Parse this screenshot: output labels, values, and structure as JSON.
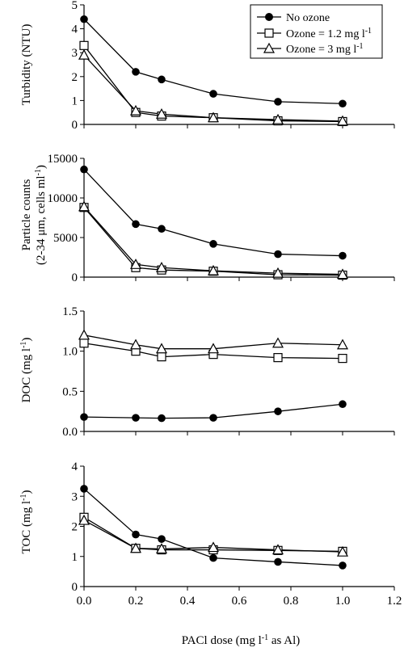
{
  "chart_data": [
    {
      "type": "line",
      "ylabel": "Turbidity (NTU)",
      "ylim": [
        0,
        5
      ],
      "yticks": [
        "0",
        "1",
        "2",
        "3",
        "4",
        "5"
      ],
      "x": [
        0.0,
        0.2,
        0.3,
        0.5,
        0.75,
        1.0
      ],
      "series": [
        {
          "name": "No ozone",
          "marker": "circle",
          "values": [
            4.4,
            2.2,
            1.88,
            1.28,
            0.95,
            0.87
          ]
        },
        {
          "name": "Ozone = 1.2 mg l-1",
          "marker": "square",
          "values": [
            3.3,
            0.5,
            0.35,
            0.28,
            0.15,
            0.12
          ]
        },
        {
          "name": "Ozone = 3 mg l-1",
          "marker": "triangle",
          "values": [
            2.9,
            0.57,
            0.43,
            0.28,
            0.2,
            0.14
          ]
        }
      ],
      "legend": "top-right"
    },
    {
      "type": "line",
      "ylabel": "Particle counts (2-34 μm, cells ml-1)",
      "ylim": [
        0,
        15000
      ],
      "yticks": [
        "0",
        "5000",
        "10000",
        "15000"
      ],
      "x": [
        0.0,
        0.2,
        0.3,
        0.5,
        0.75,
        1.0
      ],
      "series": [
        {
          "name": "No ozone",
          "marker": "circle",
          "values": [
            13600,
            6700,
            6100,
            4200,
            2900,
            2700
          ]
        },
        {
          "name": "Ozone = 1.2 mg l-1",
          "marker": "square",
          "values": [
            8800,
            1200,
            900,
            750,
            300,
            250
          ]
        },
        {
          "name": "Ozone = 3 mg l-1",
          "marker": "triangle",
          "values": [
            8900,
            1600,
            1200,
            800,
            500,
            350
          ]
        }
      ]
    },
    {
      "type": "line",
      "ylabel": "DOC (mg l-1)",
      "ylim": [
        0,
        1.5
      ],
      "yticks": [
        "0.0",
        "0.5",
        "1.0",
        "1.5"
      ],
      "x": [
        0.0,
        0.2,
        0.3,
        0.5,
        0.75,
        1.0
      ],
      "series": [
        {
          "name": "No ozone",
          "marker": "circle",
          "values": [
            0.18,
            0.17,
            0.165,
            0.17,
            0.25,
            0.34
          ]
        },
        {
          "name": "Ozone = 1.2 mg l-1",
          "marker": "square",
          "values": [
            1.1,
            1.0,
            0.93,
            0.96,
            0.92,
            0.91
          ]
        },
        {
          "name": "Ozone = 3 mg l-1",
          "marker": "triangle",
          "values": [
            1.2,
            1.08,
            1.03,
            1.03,
            1.1,
            1.08
          ]
        }
      ]
    },
    {
      "type": "line",
      "ylabel": "TOC (mg l-1)",
      "ylim": [
        0,
        4
      ],
      "yticks": [
        "0",
        "1",
        "2",
        "3",
        "4"
      ],
      "xlabel": "PACl dose (mg l-1 as Al)",
      "xlim": [
        0,
        1.2
      ],
      "xticks": [
        "0.0",
        "0.2",
        "0.4",
        "0.6",
        "0.8",
        "1.0",
        "1.2"
      ],
      "x": [
        0.0,
        0.2,
        0.3,
        0.5,
        0.75,
        1.0
      ],
      "series": [
        {
          "name": "No ozone",
          "marker": "circle",
          "values": [
            3.25,
            1.73,
            1.58,
            0.95,
            0.82,
            0.7
          ]
        },
        {
          "name": "Ozone = 1.2 mg l-1",
          "marker": "square",
          "values": [
            2.3,
            1.27,
            1.22,
            1.22,
            1.2,
            1.17
          ]
        },
        {
          "name": "Ozone = 3 mg l-1",
          "marker": "triangle",
          "values": [
            2.2,
            1.27,
            1.25,
            1.3,
            1.22,
            1.15
          ]
        }
      ]
    }
  ],
  "labels": {
    "p0_y": "Turbidity (NTU)",
    "p1_y1": "Particle counts",
    "p1_y2_pre": "(2-34 μm, cells ml",
    "p1_y2_sup": "-1",
    "p1_y2_post": ")",
    "p2_y_pre": "DOC (mg l",
    "p2_y_sup": "-1",
    "p2_y_post": ")",
    "p3_y_pre": "TOC (mg l",
    "p3_y_sup": "-1",
    "p3_y_post": ")",
    "x_pre": "PACl dose (mg l",
    "x_sup": "-1",
    "x_post": " as Al)"
  },
  "legend": {
    "item0": "No ozone",
    "item1_pre": "Ozone = 1.2 mg l",
    "item1_sup": "-1",
    "item2_pre": "Ozone = 3 mg l",
    "item2_sup": "-1"
  }
}
